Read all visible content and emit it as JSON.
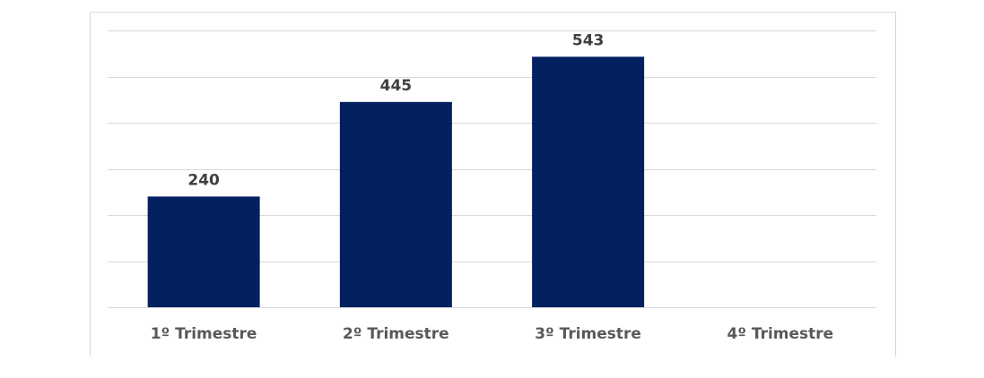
{
  "chart_data": {
    "type": "bar",
    "categories": [
      "1º Trimestre",
      "2º Trimestre",
      "3º Trimestre",
      "4º Trimestre"
    ],
    "values": [
      240,
      445,
      543,
      null
    ],
    "data_labels": [
      "240",
      "445",
      "543",
      ""
    ],
    "title": "",
    "xlabel": "",
    "ylabel": "",
    "ylim": [
      0,
      600
    ],
    "ytick_step": 100,
    "grid": true,
    "bar_color": "#032060",
    "gridline_color": "#d9d9d9"
  }
}
